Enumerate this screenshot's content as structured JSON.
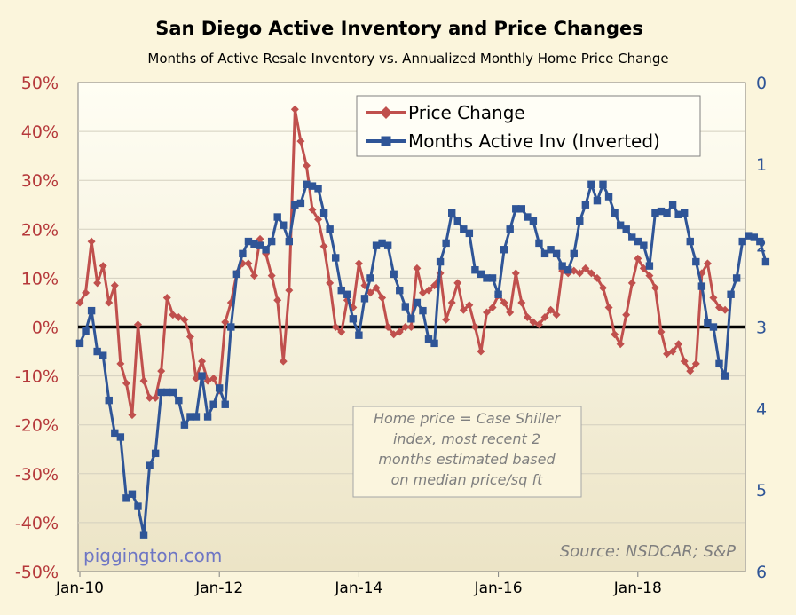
{
  "chart_data": {
    "type": "line",
    "title": "San Diego Active Inventory and Price Changes",
    "subtitle": "Months of Active Resale Inventory vs. Annualized Monthly Home Price Change",
    "x_tick_labels": [
      "Jan-10",
      "Jan-12",
      "Jan-14",
      "Jan-16",
      "Jan-18"
    ],
    "x_tick_months": [
      0,
      24,
      48,
      72,
      96
    ],
    "y_left": {
      "min": -50,
      "max": 50,
      "step": 10,
      "tick_labels": [
        "50%",
        "40%",
        "30%",
        "20%",
        "10%",
        "0%",
        "-10%",
        "-20%",
        "-30%",
        "-40%",
        "-50%"
      ]
    },
    "y_right": {
      "min": 0,
      "max": 6,
      "inverted": true,
      "tick_labels": [
        "0",
        "1",
        "2",
        "3",
        "4",
        "5",
        "6"
      ]
    },
    "zero_line": 0,
    "series": [
      {
        "name": "Price Change",
        "axis": "left",
        "color": "#c0504d",
        "marker": "diamond",
        "start": "Jan-10",
        "values": [
          5,
          7,
          17.5,
          9,
          12.5,
          5,
          8.5,
          -7.5,
          -11.5,
          -18,
          0.5,
          -11,
          -14.5,
          -14.5,
          -9,
          6,
          2.5,
          2,
          1.5,
          -2,
          -10.5,
          -7,
          -11,
          -10.5,
          -13,
          1,
          5,
          11,
          13,
          13,
          10.5,
          18,
          15,
          10.5,
          5.5,
          -7,
          7.5,
          44.5,
          38,
          33,
          24,
          22,
          16.5,
          9,
          0,
          -1,
          5.5,
          4,
          13,
          8.5,
          7,
          8,
          6,
          0,
          -1.5,
          -1,
          0,
          0,
          12,
          7,
          7.5,
          8.5,
          11,
          1.5,
          5,
          9,
          3.5,
          4.5,
          0,
          -5,
          3,
          4,
          6.5,
          5,
          3,
          11,
          5,
          2,
          1,
          0.5,
          2,
          3.5,
          2.5,
          11.5,
          11,
          11.5,
          11,
          12,
          11,
          10,
          8,
          4,
          -1.5,
          -3.5,
          2.5,
          9,
          14,
          12,
          10.5,
          8,
          -1,
          -5.5,
          -5,
          -3.5,
          -7,
          -9,
          -7.5,
          11,
          13,
          6,
          4,
          3.5
        ]
      },
      {
        "name": "Months Active Inv (Inverted)",
        "axis": "right",
        "color": "#2f5597",
        "marker": "square",
        "start": "Jan-10",
        "values": [
          3.2,
          3.05,
          2.8,
          3.3,
          3.35,
          3.9,
          4.3,
          4.35,
          5.1,
          5.05,
          5.2,
          5.55,
          4.7,
          4.55,
          3.8,
          3.8,
          3.8,
          3.9,
          4.2,
          4.1,
          4.1,
          3.6,
          4.1,
          3.95,
          3.75,
          3.95,
          3.0,
          2.35,
          2.1,
          1.95,
          1.98,
          2.0,
          2.05,
          1.95,
          1.65,
          1.75,
          1.95,
          1.5,
          1.48,
          1.25,
          1.27,
          1.3,
          1.6,
          1.8,
          2.15,
          2.55,
          2.6,
          2.9,
          3.1,
          2.65,
          2.4,
          2.0,
          1.97,
          2.0,
          2.35,
          2.55,
          2.75,
          2.9,
          2.7,
          2.8,
          3.15,
          3.2,
          2.2,
          1.97,
          1.6,
          1.7,
          1.8,
          1.85,
          2.3,
          2.35,
          2.4,
          2.4,
          2.6,
          2.05,
          1.8,
          1.55,
          1.55,
          1.65,
          1.7,
          1.97,
          2.1,
          2.05,
          2.1,
          2.25,
          2.3,
          2.1,
          1.7,
          1.5,
          1.25,
          1.45,
          1.25,
          1.4,
          1.6,
          1.75,
          1.8,
          1.9,
          1.95,
          2.0,
          2.25,
          1.6,
          1.58,
          1.6,
          1.5,
          1.62,
          1.6,
          1.95,
          2.2,
          2.5,
          2.95,
          3.0,
          3.45,
          3.6,
          2.6,
          2.4,
          1.95,
          1.88,
          1.9,
          1.95,
          2.2
        ]
      }
    ],
    "legend": {
      "position": "top-right",
      "entries": [
        "Price Change",
        "Months Active Inv (Inverted)"
      ]
    },
    "annotations": {
      "note": [
        "Home price = Case Shiller",
        "index, most recent 2",
        "months estimated based",
        "on median price/sq ft"
      ],
      "source": "Source: NSDCAR; S&P",
      "brand": "piggington.com"
    }
  }
}
